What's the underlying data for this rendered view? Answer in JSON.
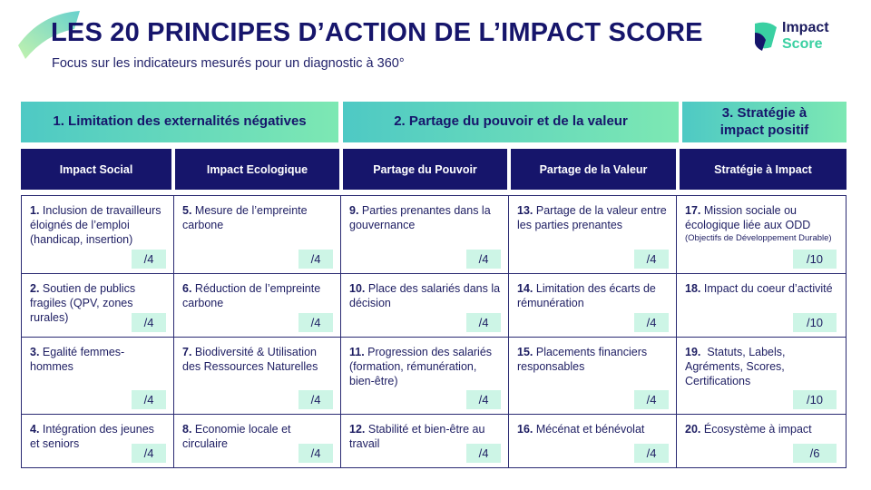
{
  "header": {
    "title": "LES 20 PRINCIPES D’ACTION DE L’IMPACT SCORE",
    "subtitle": "Focus sur les indicateurs mesurés pour un diagnostic à 360°"
  },
  "logo": {
    "line1": "Impact",
    "line2": "Score"
  },
  "colors": {
    "navy": "#16156b",
    "teal": "#4ec9c4",
    "mint": "#7de8b3",
    "score_bg": "#cdf5e6"
  },
  "categories": [
    {
      "label": "1. Limitation des externalités négatives"
    },
    {
      "label": "2. Partage du pouvoir et de la valeur"
    },
    {
      "label": "3. Stratégie à impact positif"
    }
  ],
  "columns": [
    {
      "label": "Impact Social"
    },
    {
      "label": "Impact Ecologique"
    },
    {
      "label": "Partage du Pouvoir"
    },
    {
      "label": "Partage de la Valeur"
    },
    {
      "label": "Stratégie à Impact"
    }
  ],
  "principles": [
    {
      "num": "1.",
      "text": " Inclusion de travailleurs éloignés de l’emploi (handicap, insertion)",
      "score": "/4"
    },
    {
      "num": "5.",
      "text": " Mesure de l’empreinte carbone",
      "score": "/4"
    },
    {
      "num": "9.",
      "text": " Parties prenantes dans la gouvernance",
      "score": "/4"
    },
    {
      "num": "13.",
      "text": " Partage de la valeur entre les parties prenantes",
      "score": "/4"
    },
    {
      "num": "17.",
      "text": " Mission sociale ou écologique liée aux ODD",
      "note": "(Objectifs de Développement Durable)",
      "score": "/10"
    },
    {
      "num": "2.",
      "text": " Soutien de publics fragiles (QPV, zones rurales)",
      "score": "/4"
    },
    {
      "num": "6.",
      "text": " Réduction de l’empreinte carbone",
      "score": "/4"
    },
    {
      "num": "10.",
      "text": " Place des salariés dans la décision",
      "score": "/4"
    },
    {
      "num": "14.",
      "text": " Limitation des écarts de rémunération",
      "score": "/4"
    },
    {
      "num": "18.",
      "text": " Impact du coeur d’activité",
      "score": "/10"
    },
    {
      "num": "3.",
      "text": " Egalité femmes-hommes",
      "score": "/4"
    },
    {
      "num": "7.",
      "text": " Biodiversité & Utilisation des Ressources Naturelles",
      "score": "/4"
    },
    {
      "num": "11.",
      "text": " Progression des salariés (formation, rémunération, bien-être)",
      "score": "/4"
    },
    {
      "num": "15.",
      "text": " Placements financiers responsables",
      "score": "/4"
    },
    {
      "num": "19.",
      "text": "  Statuts, Labels, Agréments, Scores, Certifications",
      "score": "/10"
    },
    {
      "num": "4.",
      "text": " Intégration des jeunes et seniors",
      "score": "/4"
    },
    {
      "num": "8.",
      "text": " Economie locale et circulaire",
      "score": "/4"
    },
    {
      "num": "12.",
      "text": " Stabilité et bien-être au travail",
      "score": "/4"
    },
    {
      "num": "16.",
      "text": " Mécénat et bénévolat",
      "score": "/4"
    },
    {
      "num": "20.",
      "text": " Écosystème à impact",
      "score": "/6"
    }
  ]
}
